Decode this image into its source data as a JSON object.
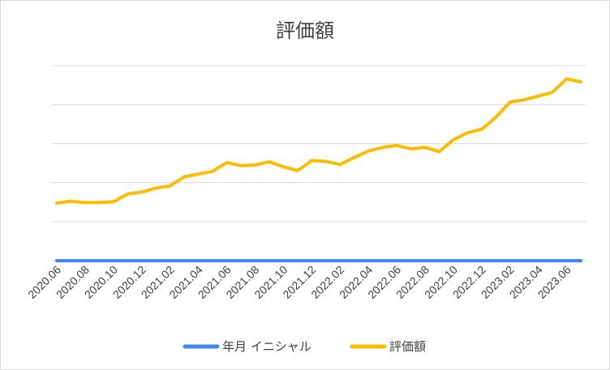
{
  "chart_data": {
    "type": "line",
    "title": "評価額",
    "xlabel": "",
    "ylabel": "",
    "grid": true,
    "y_tick_labels_shown": false,
    "ylim": [
      0,
      100
    ],
    "legend_position": "bottom",
    "x": [
      "2020.06",
      "2020.07",
      "2020.08",
      "2020.09",
      "2020.10",
      "2020.11",
      "2020.12",
      "2021.01",
      "2021.02",
      "2021.03",
      "2021.04",
      "2021.05",
      "2021.06",
      "2021.07",
      "2021.08",
      "2021.09",
      "2021.10",
      "2021.11",
      "2021.12",
      "2022.01",
      "2022.02",
      "2022.03",
      "2022.04",
      "2022.05",
      "2022.06",
      "2022.07",
      "2022.08",
      "2022.09",
      "2022.10",
      "2022.11",
      "2022.12",
      "2023.01",
      "2023.02",
      "2023.03",
      "2023.04",
      "2023.05",
      "2023.06",
      "2023.07"
    ],
    "x_tick_labels": [
      "2020.06",
      "2020.08",
      "2020.10",
      "2020.12",
      "2021.02",
      "2021.04",
      "2021.06",
      "2021.08",
      "2021.10",
      "2021.12",
      "2022.02",
      "2022.04",
      "2022.06",
      "2022.08",
      "2022.10",
      "2022.12",
      "2023.02",
      "2023.04",
      "2023.06"
    ],
    "series": [
      {
        "name": "年月 イニシャル",
        "color": "#4285f4",
        "values": [
          0,
          0,
          0,
          0,
          0,
          0,
          0,
          0,
          0,
          0,
          0,
          0,
          0,
          0,
          0,
          0,
          0,
          0,
          0,
          0,
          0,
          0,
          0,
          0,
          0,
          0,
          0,
          0,
          0,
          0,
          0,
          0,
          0,
          0,
          0,
          0,
          0,
          0
        ]
      },
      {
        "name": "評価額",
        "color": "#fbbc04",
        "values": [
          29.5,
          30.5,
          29.8,
          29.8,
          30.2,
          34.2,
          35.2,
          37.2,
          38.4,
          43.0,
          44.4,
          45.8,
          50.3,
          48.7,
          49.1,
          50.7,
          48.1,
          46.2,
          51.3,
          50.9,
          49.3,
          52.9,
          56.2,
          58.1,
          59.1,
          57.3,
          58.1,
          55.9,
          62.0,
          65.5,
          67.4,
          73.5,
          81.3,
          82.5,
          84.3,
          86.4,
          93.2,
          91.6
        ]
      }
    ]
  }
}
